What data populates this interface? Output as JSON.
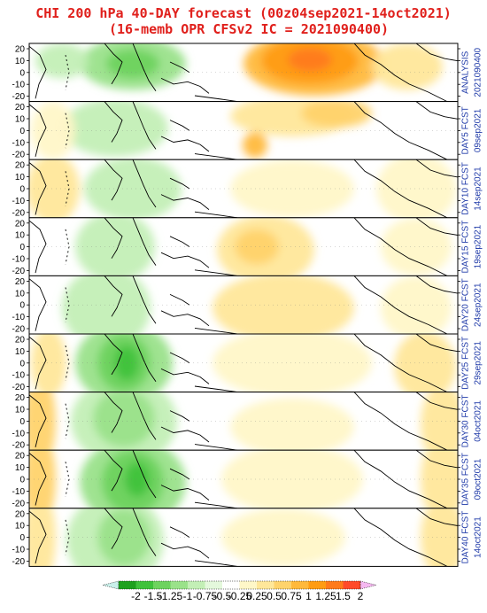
{
  "title_line1": "CHI 200 hPa 40-DAY forecast (00z04sep2021-14oct2021)",
  "title_line2": "(16-memb OPR CFSv2 IC = 2021090400)",
  "y_ticks": [
    "20",
    "10",
    "0",
    "-10",
    "-20"
  ],
  "panels": [
    {
      "label": "ANALYSIS",
      "date": "2021090400",
      "colors": [
        "#3fb13c",
        "#ff9a08"
      ]
    },
    {
      "label": "DAY5 FCST",
      "date": "09sep2021"
    },
    {
      "label": "DAY10 FCST",
      "date": "14sep2021"
    },
    {
      "label": "DAY15 FCST",
      "date": "19sep2021"
    },
    {
      "label": "DAY20 FCST",
      "date": "24sep2021"
    },
    {
      "label": "DAY25 FCST",
      "date": "29sep2021"
    },
    {
      "label": "DAY30 FCST",
      "date": "04oct2021"
    },
    {
      "label": "DAY35 FCST",
      "date": "09oct2021"
    },
    {
      "label": "DAY40 FCST",
      "date": "14oct2021"
    }
  ],
  "colorbar": {
    "colors": [
      "#1ea11e",
      "#3fc23c",
      "#6ed35f",
      "#9ae28a",
      "#c3efb6",
      "#e4f8dc",
      "#ffffff",
      "#fff7c8",
      "#ffe79a",
      "#ffd36c",
      "#ffb93c",
      "#ff9c12",
      "#ff7a1a",
      "#ff4a2a"
    ],
    "labels": [
      "-2",
      "-1.5",
      "-1.25",
      "-1",
      "-0.75",
      "-0.5",
      "-0.25",
      "0.25",
      "0.5",
      "0.75",
      "1",
      "1.25",
      "1.5",
      "2"
    ],
    "left_arrow_color": "#c9f0ea",
    "right_arrow_color": "#f5b8f0"
  }
}
